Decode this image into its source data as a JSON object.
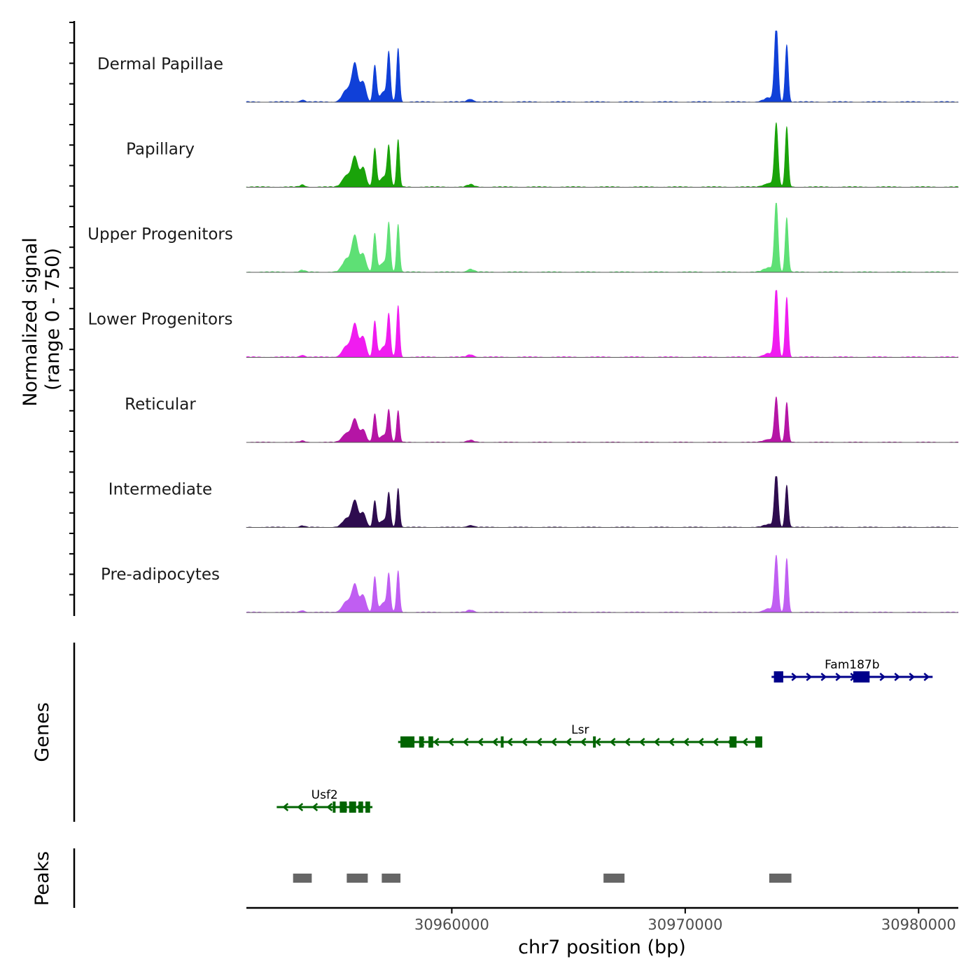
{
  "chart_data": {
    "type": "area",
    "chromosome": "chr7",
    "xlim": [
      30951200,
      30981700
    ],
    "x_ticks": [
      30960000,
      30970000,
      30980000
    ],
    "x_tick_labels": [
      "30960000",
      "30970000",
      "30980000"
    ],
    "xlabel": "chr7 position (bp)",
    "ylabel_line1": "Normalized signal",
    "ylabel_line2": "(range 0 - 750)",
    "ylim": [
      0,
      750
    ],
    "peak_shape": [
      {
        "center": 30953600,
        "width": 150,
        "height": 0.03
      },
      {
        "center": 30955500,
        "width": 260,
        "height": 0.18
      },
      {
        "center": 30955850,
        "width": 180,
        "height": 0.48
      },
      {
        "center": 30956200,
        "width": 170,
        "height": 0.28
      },
      {
        "center": 30956700,
        "width": 100,
        "height": 0.55
      },
      {
        "center": 30957300,
        "width": 95,
        "height": 0.6
      },
      {
        "center": 30957700,
        "width": 90,
        "height": 0.72
      },
      {
        "center": 30957100,
        "width": 260,
        "height": 0.15
      },
      {
        "center": 30960800,
        "width": 200,
        "height": 0.04
      },
      {
        "center": 30973900,
        "width": 110,
        "height": 1.0
      },
      {
        "center": 30974350,
        "width": 95,
        "height": 0.85
      },
      {
        "center": 30973600,
        "width": 320,
        "height": 0.06
      }
    ],
    "series": [
      {
        "name": "Dermal Papillae",
        "color": "#1040d8",
        "scale": 0.98
      },
      {
        "name": "Papillary",
        "color": "#1aa30a",
        "scale": 0.9
      },
      {
        "name": "Upper Progenitors",
        "color": "#5ee075",
        "scale": 0.95
      },
      {
        "name": "Lower Progenitors",
        "color": "#f01cf0",
        "scale": 0.92
      },
      {
        "name": "Reticular",
        "color": "#b515a5",
        "scale": 0.65
      },
      {
        "name": "Intermediate",
        "color": "#2e0c4f",
        "scale": 0.7
      },
      {
        "name": "Pre-adipocytes",
        "color": "#c05ef2",
        "scale": 0.82
      }
    ],
    "genes_track_label": "Genes",
    "genes": [
      {
        "name": "Fam187b",
        "start": 30973700,
        "end": 30980600,
        "strand": "+",
        "color": "#00008b",
        "row": 0,
        "exons": [
          [
            30973800,
            30974200
          ],
          [
            30977200,
            30977900
          ]
        ]
      },
      {
        "name": "Lsr",
        "start": 30957700,
        "end": 30973300,
        "strand": "-",
        "color": "#006400",
        "row": 1,
        "exons": [
          [
            30957800,
            30958400
          ],
          [
            30958600,
            30958800
          ],
          [
            30959000,
            30959200
          ],
          [
            30962100,
            30962200
          ],
          [
            30966050,
            30966150
          ],
          [
            30971900,
            30972200
          ],
          [
            30973000,
            30973300
          ]
        ]
      },
      {
        "name": "Usf2",
        "start": 30952500,
        "end": 30956600,
        "strand": "-",
        "color": "#006400",
        "row": 2,
        "exons": [
          [
            30954900,
            30955000
          ],
          [
            30955200,
            30955500
          ],
          [
            30955600,
            30955900
          ],
          [
            30956000,
            30956200
          ],
          [
            30956300,
            30956500
          ]
        ]
      }
    ],
    "peaks_track_label": "Peaks",
    "peaks": [
      {
        "start": 30953200,
        "end": 30954000
      },
      {
        "start": 30955500,
        "end": 30956400
      },
      {
        "start": 30957000,
        "end": 30957800
      },
      {
        "start": 30966500,
        "end": 30967400
      },
      {
        "start": 30973600,
        "end": 30974550
      }
    ],
    "peak_color": "#666666"
  }
}
